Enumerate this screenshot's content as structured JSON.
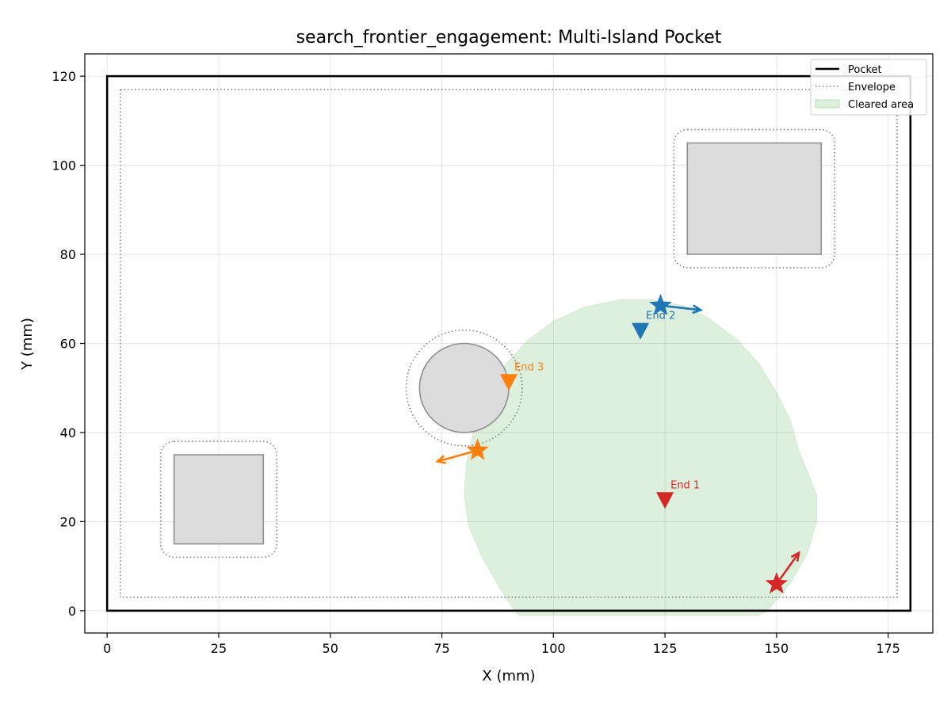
{
  "chart_data": {
    "type": "scatter",
    "title": "search_frontier_engagement: Multi-Island Pocket",
    "xlabel": "X (mm)",
    "ylabel": "Y (mm)",
    "xlim": [
      -5,
      185
    ],
    "ylim": [
      -5,
      125
    ],
    "xticks": [
      0,
      25,
      50,
      75,
      100,
      125,
      150,
      175
    ],
    "yticks": [
      0,
      20,
      40,
      60,
      80,
      100,
      120
    ],
    "grid": true,
    "legend": {
      "placement": "top-right",
      "entries": [
        {
          "label": "Pocket",
          "style": "solid",
          "color": "#000000"
        },
        {
          "label": "Envelope",
          "style": "dotted",
          "color": "#808080"
        },
        {
          "label": "Cleared area",
          "style": "patch",
          "color": "#2ca02c"
        }
      ]
    },
    "pocket": {
      "x0": 0,
      "y0": 0,
      "x1": 180,
      "y1": 120
    },
    "envelope": {
      "x0": 3,
      "y0": 3,
      "x1": 177,
      "y1": 117
    },
    "islands": [
      {
        "shape": "rect",
        "x0": 15,
        "y0": 15,
        "x1": 35,
        "y1": 35,
        "envelope_offset": 3
      },
      {
        "shape": "circle",
        "cx": 80,
        "cy": 50,
        "r": 10,
        "envelope_offset": 3
      },
      {
        "shape": "rect",
        "x0": 130,
        "y0": 80,
        "x1": 160,
        "y1": 105,
        "envelope_offset": 3
      }
    ],
    "cleared_area": {
      "color": "#2ca02c",
      "polygon": [
        [
          92,
          -1
        ],
        [
          88,
          5
        ],
        [
          84,
          12
        ],
        [
          81,
          19
        ],
        [
          80,
          26
        ],
        [
          80.5,
          33
        ],
        [
          82,
          40
        ],
        [
          85,
          48
        ],
        [
          89,
          55
        ],
        [
          94,
          60.5
        ],
        [
          100,
          65
        ],
        [
          107,
          68.2
        ],
        [
          115,
          69.8
        ],
        [
          122,
          69.8
        ],
        [
          129,
          68.5
        ],
        [
          135,
          65.5
        ],
        [
          141,
          61
        ],
        [
          146,
          55.5
        ],
        [
          150,
          49
        ],
        [
          153,
          43
        ],
        [
          155,
          36
        ],
        [
          159,
          26
        ],
        [
          159,
          20
        ],
        [
          157,
          13
        ],
        [
          153,
          6
        ],
        [
          148,
          0
        ],
        [
          146,
          -1
        ]
      ]
    },
    "tools": [
      {
        "name": "1",
        "color": "#d62728",
        "start": [
          150,
          6
        ],
        "arrow_to": [
          155,
          13
        ],
        "end": [
          125,
          25
        ],
        "end_label": "End 1"
      },
      {
        "name": "2",
        "color": "#1f77b4",
        "start": [
          124,
          68.5
        ],
        "arrow_to": [
          133,
          67.5
        ],
        "end": [
          119.5,
          63
        ],
        "end_label": "End 2"
      },
      {
        "name": "3",
        "color": "#ff7f0e",
        "start": [
          83,
          36
        ],
        "arrow_to": [
          74,
          33.5
        ],
        "end": [
          90,
          51.5
        ],
        "end_label": "End 3"
      }
    ]
  }
}
